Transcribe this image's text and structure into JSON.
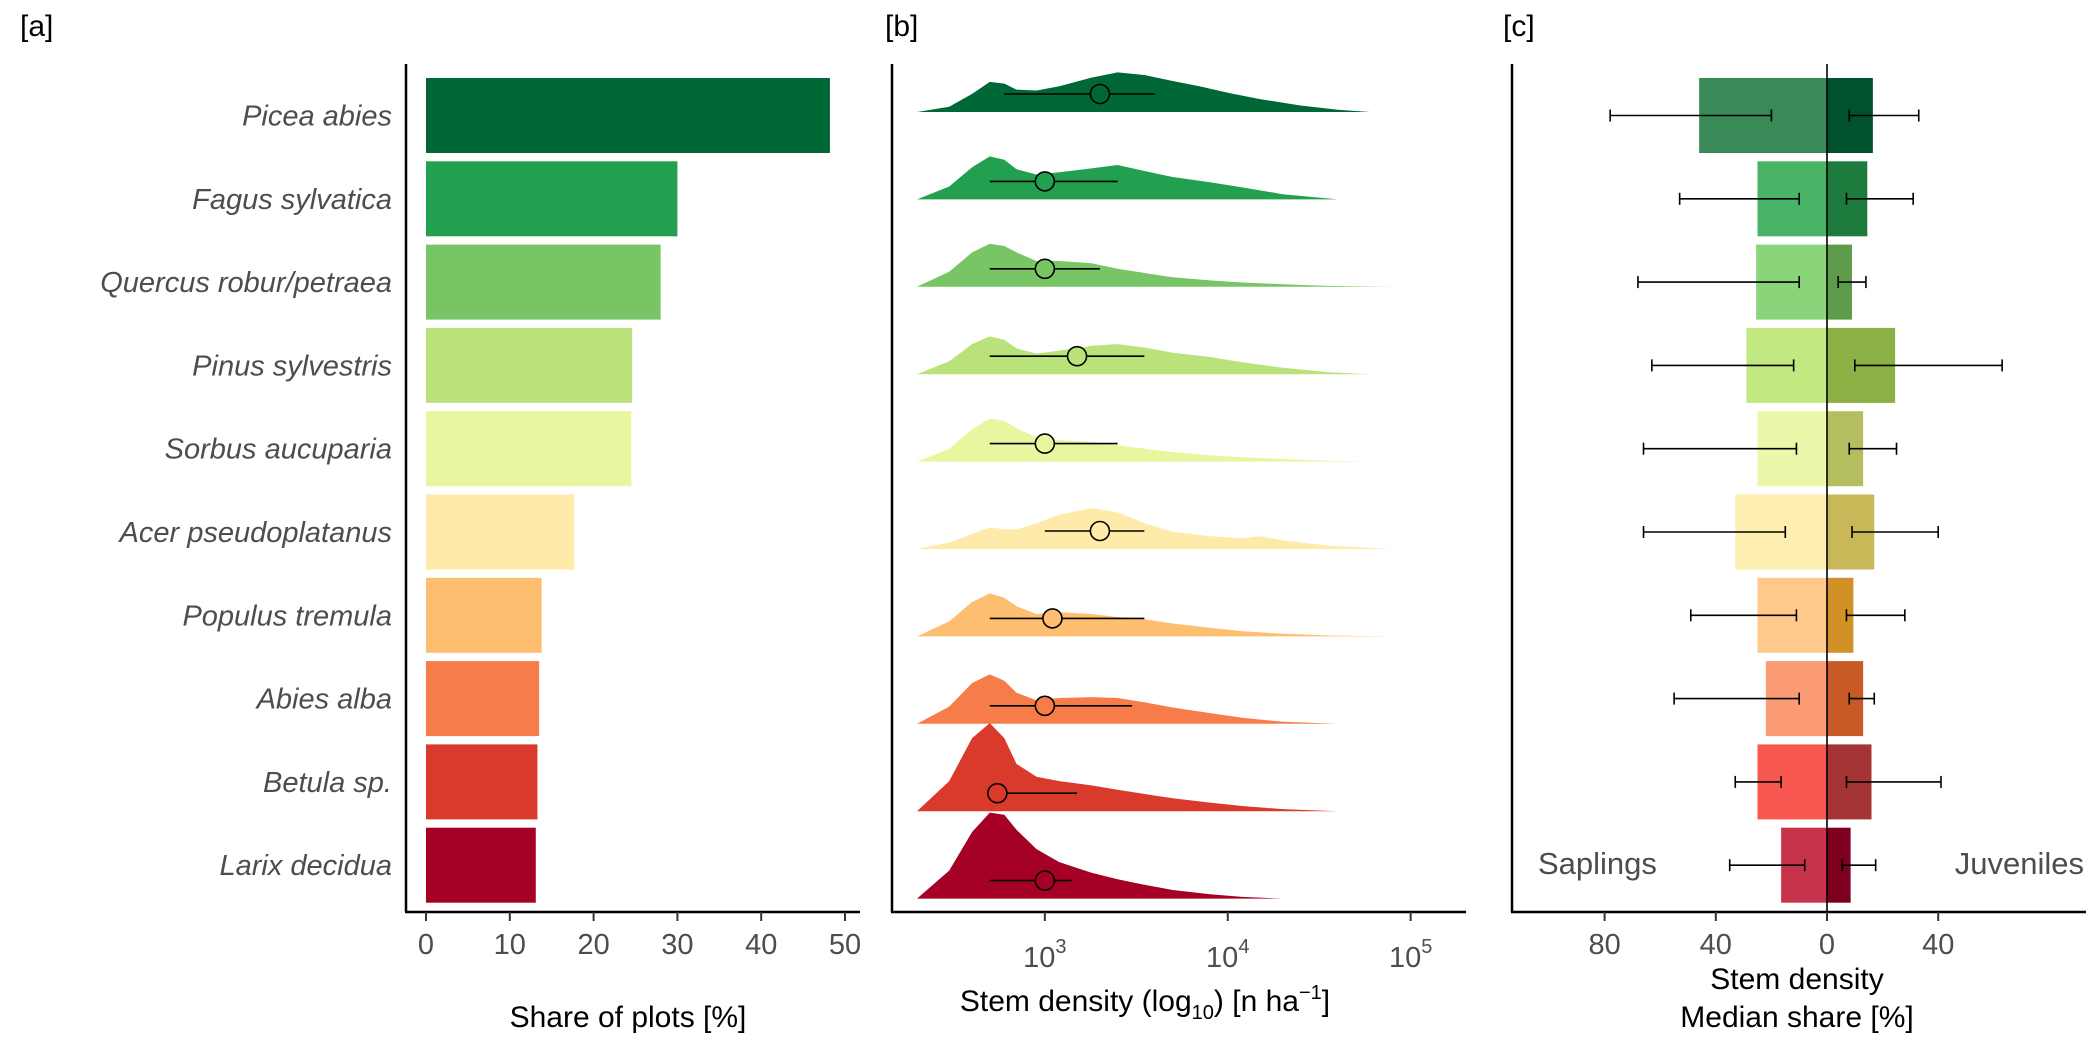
{
  "chart_data": [
    {
      "type": "bar",
      "panel_label": "[a]",
      "orientation": "horizontal",
      "categories": [
        "Picea abies",
        "Fagus sylvatica",
        "Quercus robur/petraea",
        "Pinus sylvestris",
        "Sorbus aucuparia",
        "Acer pseudoplatanus",
        "Populus tremula",
        "Abies alba",
        "Betula sp.",
        "Larix decidua"
      ],
      "values": [
        48.2,
        30.0,
        28.0,
        24.6,
        24.5,
        17.7,
        13.8,
        13.5,
        13.3,
        13.1
      ],
      "colors": [
        "#006837",
        "#23a04f",
        "#78c565",
        "#b9e27b",
        "#e8f6a0",
        "#feebaa",
        "#fdbe6f",
        "#f67d4a",
        "#d93a2c",
        "#a50026"
      ],
      "xlabel": "Share of plots [%]",
      "xlim": [
        0,
        50
      ],
      "xticks": [
        0,
        10,
        20,
        30,
        40,
        50
      ],
      "grid": false
    },
    {
      "type": "area",
      "subtype": "ridgeline-density",
      "panel_label": "[b]",
      "categories": [
        "Picea abies",
        "Fagus sylvatica",
        "Quercus robur/petraea",
        "Pinus sylvestris",
        "Sorbus aucuparia",
        "Acer pseudoplatanus",
        "Populus tremula",
        "Abies alba",
        "Betula sp.",
        "Larix decidua"
      ],
      "xlabel_main": "Stem density (log",
      "xlabel_sub": "10",
      "xlabel_unit": ") [n ha",
      "xlabel_sup": "−1",
      "xlabel_end": "]",
      "xscale": "log10",
      "xlim": [
        200,
        160000
      ],
      "xticks": [
        {
          "base": "10",
          "exp": "3",
          "value": 1000
        },
        {
          "base": "10",
          "exp": "4",
          "value": 10000
        },
        {
          "base": "10",
          "exp": "5",
          "value": 100000
        }
      ],
      "series": [
        {
          "name": "Picea abies",
          "color": "#006837",
          "range": [
            200,
            60000
          ],
          "density_x": [
            200,
            300,
            400,
            500,
            600,
            700,
            900,
            1200,
            1800,
            2500,
            3500,
            5000,
            7000,
            10000,
            15000,
            25000,
            40000,
            60000
          ],
          "density_y": [
            0.0,
            0.12,
            0.42,
            0.7,
            0.66,
            0.52,
            0.5,
            0.6,
            0.8,
            0.92,
            0.86,
            0.72,
            0.6,
            0.45,
            0.3,
            0.15,
            0.05,
            0.0
          ],
          "median": 2000,
          "q_low": 600,
          "q_high": 4000
        },
        {
          "name": "Fagus sylvatica",
          "color": "#23a04f",
          "range": [
            200,
            40000
          ],
          "density_x": [
            200,
            300,
            400,
            500,
            600,
            700,
            900,
            1200,
            1800,
            2500,
            3500,
            5000,
            8000,
            12000,
            20000,
            40000
          ],
          "density_y": [
            0.0,
            0.3,
            0.75,
            1.0,
            0.92,
            0.7,
            0.58,
            0.63,
            0.72,
            0.8,
            0.66,
            0.52,
            0.4,
            0.28,
            0.12,
            0.0
          ],
          "median": 1000,
          "q_low": 500,
          "q_high": 2500
        },
        {
          "name": "Quercus robur/petraea",
          "color": "#78c565",
          "range": [
            200,
            80000
          ],
          "density_x": [
            200,
            300,
            400,
            500,
            600,
            700,
            900,
            1200,
            1800,
            2500,
            3500,
            5000,
            8000,
            12000,
            20000,
            35000,
            80000
          ],
          "density_y": [
            0.0,
            0.35,
            0.8,
            1.0,
            0.95,
            0.8,
            0.6,
            0.6,
            0.55,
            0.42,
            0.32,
            0.22,
            0.15,
            0.1,
            0.06,
            0.02,
            0.0
          ],
          "median": 1000,
          "q_low": 500,
          "q_high": 2000
        },
        {
          "name": "Pinus sylvestris",
          "color": "#b9e27b",
          "range": [
            200,
            60000
          ],
          "density_x": [
            200,
            300,
            400,
            500,
            600,
            700,
            900,
            1200,
            1800,
            2500,
            3500,
            5000,
            8000,
            12000,
            20000,
            35000,
            60000
          ],
          "density_y": [
            0.0,
            0.3,
            0.7,
            0.88,
            0.8,
            0.6,
            0.48,
            0.55,
            0.66,
            0.7,
            0.62,
            0.5,
            0.4,
            0.28,
            0.15,
            0.05,
            0.0
          ],
          "median": 1500,
          "q_low": 500,
          "q_high": 3500
        },
        {
          "name": "Sorbus aucuparia",
          "color": "#e8f6a0",
          "range": [
            200,
            60000
          ],
          "density_x": [
            200,
            300,
            400,
            500,
            600,
            700,
            900,
            1200,
            1800,
            2500,
            3500,
            5000,
            8000,
            12000,
            20000,
            35000,
            60000
          ],
          "density_y": [
            0.0,
            0.3,
            0.75,
            1.0,
            0.95,
            0.78,
            0.56,
            0.5,
            0.46,
            0.38,
            0.3,
            0.22,
            0.15,
            0.1,
            0.06,
            0.02,
            0.0
          ],
          "median": 1000,
          "q_low": 500,
          "q_high": 2500
        },
        {
          "name": "Acer pseudoplatanus",
          "color": "#feebaa",
          "range": [
            200,
            80000
          ],
          "density_x": [
            200,
            300,
            400,
            500,
            600,
            700,
            900,
            1200,
            1800,
            2500,
            3500,
            5000,
            8000,
            12000,
            15000,
            20000,
            35000,
            80000
          ],
          "density_y": [
            0.0,
            0.15,
            0.35,
            0.5,
            0.46,
            0.45,
            0.6,
            0.8,
            0.95,
            0.85,
            0.6,
            0.4,
            0.3,
            0.25,
            0.3,
            0.2,
            0.08,
            0.0
          ],
          "median": 2000,
          "q_low": 1000,
          "q_high": 3500
        },
        {
          "name": "Populus tremula",
          "color": "#fdbe6f",
          "range": [
            200,
            80000
          ],
          "density_x": [
            200,
            300,
            400,
            500,
            600,
            700,
            900,
            1200,
            1800,
            2500,
            3500,
            5000,
            8000,
            12000,
            20000,
            35000,
            80000
          ],
          "density_y": [
            0.0,
            0.35,
            0.8,
            1.0,
            0.9,
            0.7,
            0.52,
            0.56,
            0.52,
            0.45,
            0.4,
            0.3,
            0.2,
            0.12,
            0.06,
            0.02,
            0.0
          ],
          "median": 1100,
          "q_low": 500,
          "q_high": 3500
        },
        {
          "name": "Abies alba",
          "color": "#f67d4a",
          "range": [
            200,
            40000
          ],
          "density_x": [
            200,
            300,
            400,
            500,
            600,
            700,
            900,
            1200,
            1800,
            2500,
            3500,
            5000,
            8000,
            12000,
            20000,
            40000
          ],
          "density_y": [
            0.0,
            0.4,
            0.95,
            1.15,
            1.0,
            0.72,
            0.55,
            0.6,
            0.62,
            0.6,
            0.5,
            0.38,
            0.25,
            0.14,
            0.05,
            0.0
          ],
          "median": 1000,
          "q_low": 500,
          "q_high": 3000
        },
        {
          "name": "Betula sp.",
          "color": "#d93a2c",
          "range": [
            200,
            40000
          ],
          "density_x": [
            200,
            300,
            400,
            500,
            600,
            700,
            900,
            1200,
            1800,
            2500,
            3500,
            5000,
            8000,
            12000,
            20000,
            40000
          ],
          "density_y": [
            0.0,
            0.7,
            1.7,
            2.05,
            1.7,
            1.1,
            0.8,
            0.7,
            0.6,
            0.5,
            0.4,
            0.3,
            0.2,
            0.12,
            0.05,
            0.0
          ],
          "median": 550,
          "q_low": 500,
          "q_high": 1500
        },
        {
          "name": "Larix decidua",
          "color": "#a50026",
          "range": [
            200,
            20000
          ],
          "density_x": [
            200,
            300,
            400,
            500,
            600,
            700,
            900,
            1200,
            1800,
            2500,
            3500,
            5000,
            8000,
            12000,
            20000
          ],
          "density_y": [
            0.0,
            0.65,
            1.55,
            2.0,
            1.95,
            1.6,
            1.15,
            0.85,
            0.6,
            0.45,
            0.32,
            0.2,
            0.1,
            0.04,
            0.0
          ],
          "median": 1000,
          "q_low": 500,
          "q_high": 1400
        }
      ],
      "grid": false
    },
    {
      "type": "bar",
      "subtype": "diverging",
      "panel_label": "[c]",
      "orientation": "horizontal",
      "categories": [
        "Picea abies",
        "Fagus sylvatica",
        "Quercus robur/petraea",
        "Pinus sylvestris",
        "Sorbus aucuparia",
        "Acer pseudoplatanus",
        "Populus tremula",
        "Abies alba",
        "Betula sp.",
        "Larix decidua"
      ],
      "xlabel_line1": "Stem density",
      "xlabel_line2": "Median share [%]",
      "xlim": [
        -82,
        67
      ],
      "xticks": [
        {
          "value": -80,
          "label": "80"
        },
        {
          "value": -40,
          "label": "40"
        },
        {
          "value": 0,
          "label": "0"
        },
        {
          "value": 40,
          "label": "40"
        }
      ],
      "left_label": "Saplings",
      "right_label": "Juveniles",
      "series": [
        {
          "name": "Saplings",
          "values": [
            46,
            25,
            25.5,
            29,
            25,
            33,
            25,
            22,
            25,
            16.5
          ],
          "err_low": [
            78,
            53,
            68,
            63,
            66,
            66,
            49,
            55,
            33,
            35
          ],
          "err_high": [
            20,
            10,
            10,
            12,
            11,
            15,
            11,
            10,
            16.5,
            8
          ],
          "colors": [
            "#3a8a57",
            "#49b466",
            "#8ad479",
            "#c2e882",
            "#ecf7aa",
            "#feeeb0",
            "#fec98a",
            "#fc9c75",
            "#f7574f",
            "#c6334a"
          ]
        },
        {
          "name": "Juveniles",
          "values": [
            16.5,
            14.5,
            9,
            24.5,
            13,
            17,
            9.5,
            13,
            16,
            8.5
          ],
          "err_low": [
            8,
            7,
            4,
            10,
            8,
            9,
            7,
            8,
            7,
            5.5
          ],
          "err_high": [
            33,
            31,
            14,
            63,
            25,
            40,
            28,
            17,
            41,
            17.5
          ],
          "colors": [
            "#00522c",
            "#1e7b3e",
            "#5c9c4a",
            "#8bb043",
            "#b5bd61",
            "#c9b858",
            "#d19126",
            "#c85a25",
            "#a53434",
            "#7e0020"
          ]
        }
      ],
      "grid": false
    }
  ]
}
